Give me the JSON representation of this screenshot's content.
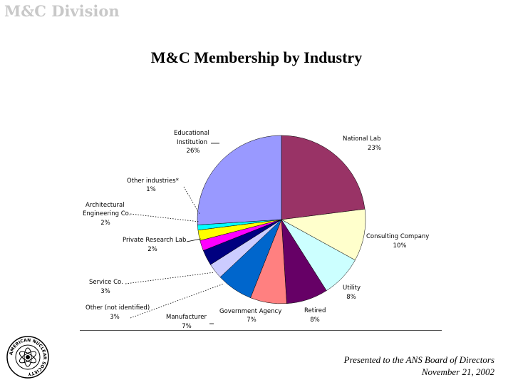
{
  "header": {
    "division": "M&C Division"
  },
  "footer": {
    "line1": "Presented to the ANS Board of Directors",
    "line2": "November 21, 2002"
  },
  "logo": {
    "text": "AMERICAN NUCLEAR SOCIETY"
  },
  "chart_data": {
    "type": "pie",
    "title": "M&C Membership by Industry",
    "slices": [
      {
        "label": "National Lab",
        "value": 23,
        "pct_label": "23%",
        "color": "#993366"
      },
      {
        "label": "Consulting Company",
        "value": 10,
        "pct_label": "10%",
        "color": "#ffffcc"
      },
      {
        "label": "Utility",
        "value": 8,
        "pct_label": "8%",
        "color": "#ccffff"
      },
      {
        "label": "Retired",
        "value": 8,
        "pct_label": "8%",
        "color": "#660066"
      },
      {
        "label": "Government Agency",
        "value": 7,
        "pct_label": "7%",
        "color": "#ff8080"
      },
      {
        "label": "Manufacturer",
        "value": 7,
        "pct_label": "7%",
        "color": "#0066cc"
      },
      {
        "label": "Other (not identified)",
        "value": 3,
        "pct_label": "3%",
        "color": "#ccccff"
      },
      {
        "label": "Service Co.",
        "value": 3,
        "pct_label": "3%",
        "color": "#000080"
      },
      {
        "label": "Private Research Lab",
        "value": 2,
        "pct_label": "2%",
        "color": "#ff00ff"
      },
      {
        "label": "Architectural Engineering Co.",
        "value": 2,
        "pct_label": "2%",
        "color": "#ffff00"
      },
      {
        "label": "Other industries*",
        "value": 1,
        "pct_label": "1%",
        "color": "#00ffff"
      },
      {
        "label": "Educational Institution",
        "value": 26,
        "pct_label": "26%",
        "color": "#9999ff"
      }
    ]
  }
}
